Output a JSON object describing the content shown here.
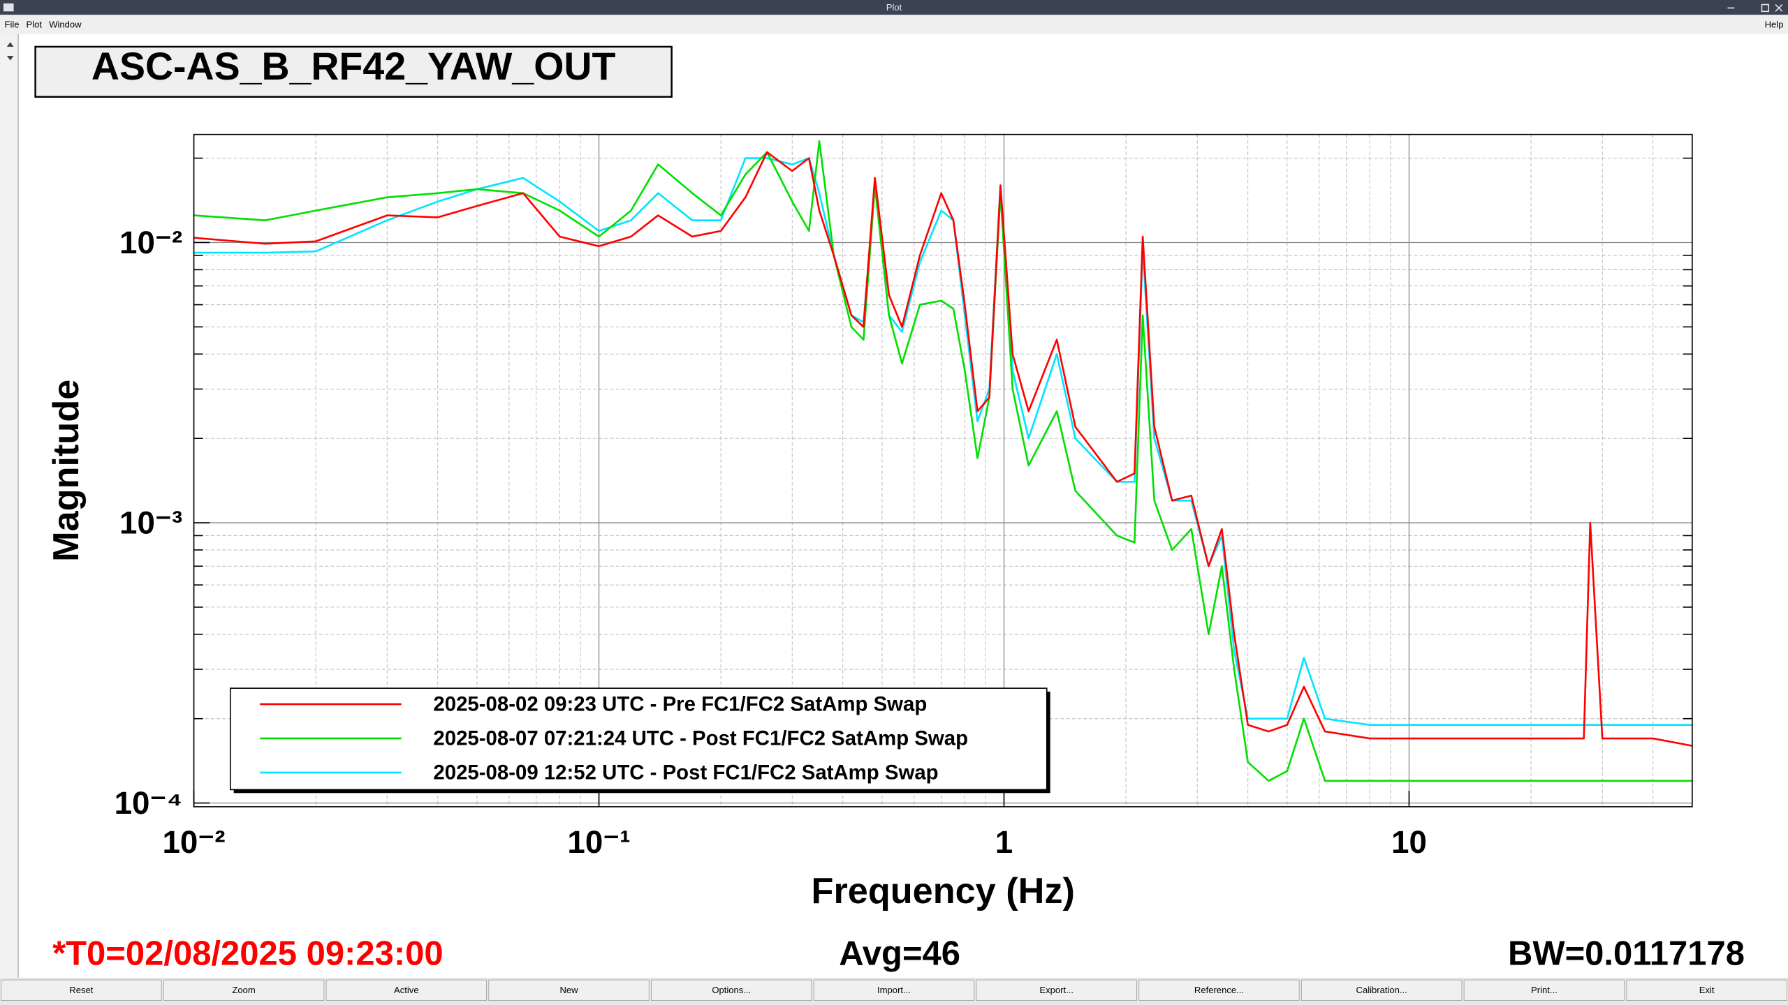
{
  "window": {
    "title": "Plot",
    "menu": [
      "File",
      "Plot",
      "Window"
    ],
    "help": "Help"
  },
  "chart_data": {
    "type": "line",
    "title": "ASC-AS_B_RF42_YAW_OUT",
    "xlabel": "Frequency (Hz)",
    "ylabel": "Magnitude",
    "xscale": "log",
    "yscale": "log",
    "grid": true,
    "minor_grid": true,
    "xlim": [
      0.01,
      50
    ],
    "ylim": [
      9.7e-05,
      0.0243
    ],
    "xticks": [
      {
        "value": 0.01,
        "label": "10⁻²"
      },
      {
        "value": 0.1,
        "label": "10⁻¹"
      },
      1,
      10
    ],
    "yticks": [
      {
        "value": 0.0001,
        "label": "10⁻⁴"
      },
      {
        "value": 0.001,
        "label": "10⁻³"
      },
      {
        "value": 0.01,
        "label": "10⁻²"
      }
    ],
    "legend": "bottom-left",
    "x": [
      0.01,
      0.015,
      0.02,
      0.03,
      0.04,
      0.05,
      0.065,
      0.08,
      0.1,
      0.12,
      0.14,
      0.17,
      0.2,
      0.23,
      0.26,
      0.3,
      0.33,
      0.35,
      0.38,
      0.42,
      0.45,
      0.48,
      0.52,
      0.56,
      0.62,
      0.7,
      0.75,
      0.8,
      0.86,
      0.92,
      0.98,
      1.05,
      1.15,
      1.35,
      1.5,
      1.9,
      2.1,
      2.2,
      2.35,
      2.6,
      2.9,
      3.2,
      3.45,
      3.7,
      4,
      4.5,
      5,
      5.5,
      6.2,
      8,
      12,
      20,
      27,
      28,
      30,
      40,
      50
    ],
    "series": [
      {
        "name": "2025-08-02 09:23 UTC - Pre FC1/FC2 SatAmp Swap",
        "color": "#ff0000",
        "values": [
          0.0104,
          0.0099,
          0.0101,
          0.0125,
          0.0123,
          0.0135,
          0.015,
          0.0105,
          0.0097,
          0.0105,
          0.0125,
          0.0105,
          0.011,
          0.0145,
          0.021,
          0.018,
          0.02,
          0.013,
          0.009,
          0.0055,
          0.005,
          0.017,
          0.0065,
          0.005,
          0.009,
          0.015,
          0.012,
          0.006,
          0.0025,
          0.0028,
          0.016,
          0.004,
          0.0025,
          0.0045,
          0.0022,
          0.0014,
          0.0015,
          0.0105,
          0.0022,
          0.0012,
          0.00125,
          0.0007,
          0.00095,
          0.0004,
          0.00019,
          0.00018,
          0.00019,
          0.00026,
          0.00018,
          0.00017,
          0.00017,
          0.00017,
          0.00017,
          0.001,
          0.00017,
          0.00017,
          0.00016
        ]
      },
      {
        "name": "2025-08-07 07:21:24 UTC - Post FC1/FC2 SatAmp Swap",
        "color": "#00e000",
        "values": [
          0.0125,
          0.012,
          0.013,
          0.0145,
          0.015,
          0.0155,
          0.015,
          0.013,
          0.0105,
          0.013,
          0.019,
          0.015,
          0.0125,
          0.0175,
          0.021,
          0.014,
          0.011,
          0.023,
          0.009,
          0.005,
          0.0045,
          0.016,
          0.0055,
          0.0037,
          0.006,
          0.0062,
          0.0058,
          0.0035,
          0.0017,
          0.0028,
          0.015,
          0.003,
          0.0016,
          0.0025,
          0.0013,
          0.0009,
          0.00085,
          0.0055,
          0.0012,
          0.0008,
          0.00095,
          0.0004,
          0.0007,
          0.0003,
          0.00014,
          0.00012,
          0.00013,
          0.0002,
          0.00012,
          0.00012,
          0.00012,
          0.00012,
          0.00012,
          0.00012,
          0.00012,
          0.00012,
          0.00012
        ]
      },
      {
        "name": "2025-08-09 12:52 UTC - Post FC1/FC2 SatAmp Swap",
        "color": "#00e5ff",
        "values": [
          0.0092,
          0.0092,
          0.0093,
          0.012,
          0.014,
          0.0155,
          0.017,
          0.014,
          0.011,
          0.012,
          0.015,
          0.012,
          0.012,
          0.02,
          0.02,
          0.019,
          0.02,
          0.015,
          0.009,
          0.0055,
          0.0052,
          0.016,
          0.0055,
          0.0048,
          0.0085,
          0.013,
          0.012,
          0.0055,
          0.0023,
          0.003,
          0.016,
          0.0035,
          0.002,
          0.004,
          0.002,
          0.0014,
          0.0014,
          0.0095,
          0.002,
          0.0012,
          0.0012,
          0.0007,
          0.0009,
          0.00035,
          0.0002,
          0.0002,
          0.0002,
          0.00033,
          0.0002,
          0.00019,
          0.00019,
          0.00019,
          0.00019,
          0.00019,
          0.00019,
          0.00019,
          0.00019
        ]
      }
    ]
  },
  "status": {
    "t0": "*T0=02/08/2025 09:23:00",
    "avg": "Avg=46",
    "bw": "BW=0.0117178"
  },
  "buttons": [
    "Reset",
    "Zoom",
    "Active",
    "New",
    "Options...",
    "Import...",
    "Export...",
    "Reference...",
    "Calibration...",
    "Print...",
    "Exit"
  ]
}
